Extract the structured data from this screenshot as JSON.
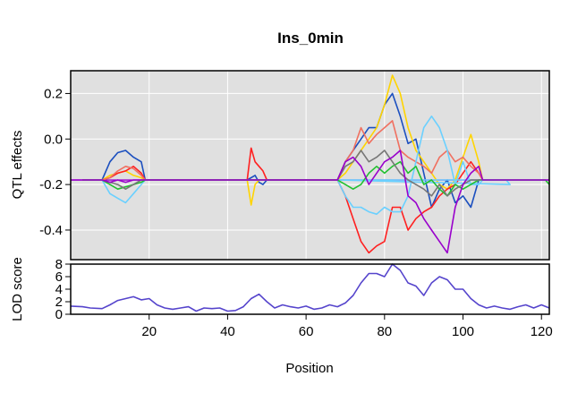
{
  "chart_data": {
    "type": "line",
    "title": "Ins_0min",
    "xlabel": "Position",
    "x_ticks": [
      "20",
      "40",
      "60",
      "80",
      "100",
      "120"
    ],
    "panels": [
      {
        "id": "qtl_effects",
        "ylabel": "QTL effects",
        "ylim": [
          -0.53,
          0.3
        ],
        "y_ticks": [
          "0.2",
          "0.0",
          "-0.2",
          "-0.4"
        ],
        "xlim": [
          0,
          122
        ],
        "grid": true,
        "background": "#e0e0e0",
        "baseline": -0.18,
        "series": [
          {
            "color": "#1b4fbf",
            "x": [
              3,
              8,
              10,
              12,
              14,
              16,
              18,
              19,
              20,
              45,
              47,
              48,
              49,
              50,
              68,
              70,
              72,
              74,
              76,
              78,
              80,
              82,
              84,
              86,
              88,
              90,
              92,
              94,
              96,
              98,
              100,
              102,
              104,
              105
            ],
            "y": [
              -0.18,
              -0.18,
              -0.1,
              -0.06,
              -0.05,
              -0.08,
              -0.1,
              -0.18,
              -0.18,
              -0.18,
              -0.16,
              -0.19,
              -0.2,
              -0.18,
              -0.18,
              -0.1,
              -0.05,
              0.0,
              0.05,
              0.05,
              0.15,
              0.2,
              0.1,
              -0.02,
              0.0,
              -0.15,
              -0.3,
              -0.22,
              -0.18,
              -0.28,
              -0.25,
              -0.3,
              -0.18,
              -0.18
            ]
          },
          {
            "color": "#ffd400",
            "x": [
              3,
              8,
              10,
              12,
              14,
              16,
              18,
              19,
              20,
              45,
              46,
              47,
              48,
              49,
              50,
              68,
              70,
              72,
              74,
              76,
              78,
              80,
              82,
              84,
              86,
              88,
              90,
              92,
              94,
              96,
              98,
              100,
              102,
              104,
              105
            ],
            "y": [
              -0.18,
              -0.18,
              -0.16,
              -0.15,
              -0.14,
              -0.16,
              -0.17,
              -0.18,
              -0.18,
              -0.18,
              -0.29,
              -0.2,
              -0.18,
              -0.18,
              -0.18,
              -0.18,
              -0.15,
              -0.1,
              -0.05,
              0.0,
              0.05,
              0.15,
              0.28,
              0.2,
              0.05,
              -0.05,
              -0.1,
              -0.15,
              -0.2,
              -0.22,
              -0.18,
              -0.08,
              0.02,
              -0.1,
              -0.18
            ]
          },
          {
            "color": "#ff2020",
            "x": [
              3,
              8,
              10,
              12,
              14,
              16,
              18,
              19,
              20,
              45,
              46,
              47,
              48,
              49,
              50,
              68,
              70,
              72,
              74,
              76,
              78,
              80,
              82,
              84,
              86,
              88,
              90,
              92,
              94,
              96,
              98,
              100,
              102,
              104,
              105
            ],
            "y": [
              -0.18,
              -0.18,
              -0.17,
              -0.15,
              -0.14,
              -0.12,
              -0.15,
              -0.18,
              -0.18,
              -0.18,
              -0.04,
              -0.1,
              -0.12,
              -0.14,
              -0.18,
              -0.18,
              -0.25,
              -0.35,
              -0.45,
              -0.5,
              -0.47,
              -0.45,
              -0.3,
              -0.3,
              -0.4,
              -0.35,
              -0.32,
              -0.3,
              -0.25,
              -0.22,
              -0.2,
              -0.15,
              -0.1,
              -0.15,
              -0.18
            ]
          },
          {
            "color": "#f07060",
            "x": [
              3,
              8,
              10,
              12,
              14,
              16,
              18,
              19,
              20,
              68,
              70,
              72,
              74,
              76,
              78,
              80,
              82,
              84,
              86,
              88,
              90,
              92,
              94,
              96,
              98,
              100,
              102,
              104,
              105
            ],
            "y": [
              -0.18,
              -0.18,
              -0.17,
              -0.14,
              -0.12,
              -0.13,
              -0.16,
              -0.18,
              -0.18,
              -0.18,
              -0.1,
              -0.05,
              0.05,
              -0.02,
              0.02,
              0.05,
              0.08,
              -0.05,
              -0.08,
              -0.1,
              -0.12,
              -0.15,
              -0.08,
              -0.05,
              -0.1,
              -0.08,
              -0.12,
              -0.15,
              -0.18
            ]
          },
          {
            "color": "#6ad0ff",
            "x": [
              3,
              8,
              10,
              12,
              14,
              16,
              18,
              19,
              20,
              111,
              112,
              68,
              70,
              72,
              74,
              76,
              78,
              80,
              82,
              84,
              86,
              88,
              90,
              92,
              94,
              96,
              98,
              100,
              102,
              104,
              105
            ],
            "y": [
              -0.18,
              -0.18,
              -0.24,
              -0.26,
              -0.28,
              -0.24,
              -0.2,
              -0.18,
              -0.18,
              -0.18,
              -0.2,
              -0.18,
              -0.25,
              -0.3,
              -0.3,
              -0.32,
              -0.33,
              -0.3,
              -0.32,
              -0.32,
              -0.25,
              -0.1,
              0.05,
              0.1,
              0.05,
              -0.05,
              -0.2,
              -0.1,
              -0.2,
              -0.2,
              -0.18
            ]
          },
          {
            "color": "#22c030",
            "x": [
              3,
              8,
              10,
              12,
              14,
              16,
              18,
              19,
              20,
              68,
              70,
              72,
              74,
              76,
              78,
              80,
              82,
              84,
              86,
              88,
              90,
              92,
              94,
              96,
              98,
              100,
              102,
              104,
              105,
              121,
              122
            ],
            "y": [
              -0.18,
              -0.18,
              -0.2,
              -0.22,
              -0.21,
              -0.2,
              -0.19,
              -0.18,
              -0.18,
              -0.18,
              -0.2,
              -0.22,
              -0.2,
              -0.15,
              -0.12,
              -0.15,
              -0.12,
              -0.1,
              -0.15,
              -0.12,
              -0.2,
              -0.18,
              -0.22,
              -0.25,
              -0.2,
              -0.22,
              -0.2,
              -0.18,
              -0.18,
              -0.18,
              -0.2
            ]
          },
          {
            "color": "#777777",
            "x": [
              3,
              8,
              10,
              12,
              14,
              16,
              18,
              19,
              20,
              68,
              70,
              72,
              74,
              76,
              78,
              80,
              82,
              84,
              86,
              88,
              90,
              92,
              94,
              96,
              98,
              100,
              102,
              104,
              105
            ],
            "y": [
              -0.18,
              -0.18,
              -0.19,
              -0.2,
              -0.22,
              -0.2,
              -0.18,
              -0.18,
              -0.18,
              -0.18,
              -0.12,
              -0.1,
              -0.05,
              -0.1,
              -0.08,
              -0.05,
              -0.1,
              -0.15,
              -0.18,
              -0.2,
              -0.22,
              -0.25,
              -0.2,
              -0.25,
              -0.22,
              -0.2,
              -0.18,
              -0.18,
              -0.18
            ]
          },
          {
            "color": "#9900cc",
            "x": [
              0,
              8,
              10,
              12,
              14,
              16,
              18,
              19,
              20,
              68,
              70,
              72,
              74,
              76,
              78,
              80,
              82,
              84,
              86,
              88,
              90,
              92,
              94,
              96,
              98,
              100,
              102,
              104,
              105,
              122
            ],
            "y": [
              -0.18,
              -0.18,
              -0.19,
              -0.18,
              -0.19,
              -0.18,
              -0.18,
              -0.18,
              -0.18,
              -0.18,
              -0.1,
              -0.08,
              -0.12,
              -0.2,
              -0.15,
              -0.1,
              -0.08,
              -0.05,
              -0.25,
              -0.28,
              -0.35,
              -0.4,
              -0.45,
              -0.5,
              -0.3,
              -0.2,
              -0.15,
              -0.12,
              -0.18,
              -0.18
            ]
          }
        ]
      },
      {
        "id": "lod_score",
        "ylabel": "LOD score",
        "ylim": [
          0,
          8
        ],
        "y_ticks": [
          "0",
          "2",
          "4",
          "6",
          "8"
        ],
        "xlim": [
          0,
          122
        ],
        "grid": false,
        "series": [
          {
            "color": "#5544cc",
            "x": [
              0,
              3,
              5,
              8,
              10,
              12,
              14,
              16,
              18,
              20,
              22,
              24,
              26,
              28,
              30,
              32,
              34,
              36,
              38,
              40,
              42,
              44,
              46,
              48,
              50,
              52,
              54,
              56,
              58,
              60,
              62,
              64,
              66,
              68,
              70,
              72,
              74,
              76,
              78,
              80,
              82,
              84,
              86,
              88,
              90,
              92,
              94,
              96,
              98,
              100,
              102,
              104,
              106,
              108,
              110,
              112,
              114,
              116,
              118,
              120,
              122
            ],
            "y": [
              1.3,
              1.2,
              1.0,
              0.9,
              1.5,
              2.2,
              2.5,
              2.8,
              2.3,
              2.5,
              1.5,
              1.0,
              0.8,
              1.0,
              1.2,
              0.5,
              1.0,
              0.9,
              1.0,
              0.5,
              0.6,
              1.2,
              2.5,
              3.2,
              2.0,
              1.0,
              1.5,
              1.2,
              1.0,
              1.3,
              0.8,
              1.0,
              1.5,
              1.2,
              1.8,
              3.0,
              5.0,
              6.5,
              6.5,
              6.0,
              8.0,
              7.0,
              5.0,
              4.5,
              3.0,
              5.0,
              6.0,
              5.5,
              4.0,
              4.0,
              2.5,
              1.5,
              1.0,
              1.3,
              1.0,
              0.8,
              1.2,
              1.5,
              1.0,
              1.5,
              1.0
            ]
          }
        ]
      }
    ]
  }
}
